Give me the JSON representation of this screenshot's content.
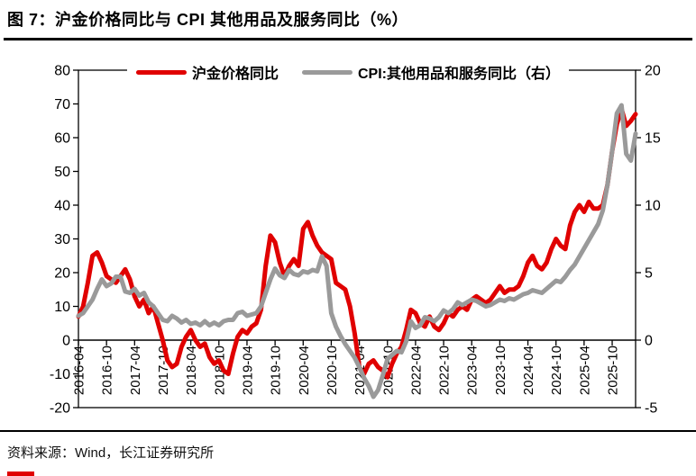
{
  "header": {
    "title": "图 7：沪金价格同比与 CPI 其他用品及服务同比（%）"
  },
  "footer": {
    "source": "资料来源：Wind，长江证券研究所"
  },
  "colors": {
    "gold_line": "#e00000",
    "cpi_line": "#9a9a9a",
    "axis": "#000000",
    "rule": "#000000"
  },
  "chart_data": {
    "type": "line",
    "title": "沪金价格同比与 CPI 其他用品及服务同比（%）",
    "x_start_month": "2016-04",
    "x_interval": "monthly",
    "x_tick_labels": [
      "2016-04",
      "2016-10",
      "2017-04",
      "2017-10",
      "2018-04",
      "2018-10",
      "2019-04",
      "2019-10",
      "2020-04",
      "2020-10",
      "2021-04",
      "2021-10",
      "2022-04",
      "2022-10",
      "2023-04",
      "2023-10",
      "2024-04",
      "2024-10",
      "2025-04",
      "2025-10"
    ],
    "left_axis": {
      "min": -20,
      "max": 80,
      "ticks": [
        80,
        70,
        60,
        50,
        40,
        30,
        20,
        10,
        0,
        -10,
        -20
      ]
    },
    "right_axis": {
      "min": -5,
      "max": 20,
      "ticks": [
        20,
        15,
        10,
        5,
        0,
        -5
      ]
    },
    "grid": false,
    "legend_position": "top",
    "series": [
      {
        "name": "沪金价格同比",
        "axis": "left",
        "color": "#e00000",
        "values": [
          7,
          10,
          17,
          25,
          26,
          23,
          19,
          18,
          17,
          19,
          21,
          18,
          13,
          10,
          12,
          8,
          10,
          5,
          0,
          -6,
          -8,
          -7,
          -2,
          1,
          3,
          0,
          -2,
          -1,
          -5,
          -7,
          -6,
          -9,
          -10,
          -4,
          1,
          3,
          2,
          4,
          5,
          9,
          22,
          31,
          29,
          23,
          19,
          22,
          24,
          22,
          33,
          35,
          31,
          28,
          26,
          25,
          24,
          17,
          16,
          15,
          10,
          2,
          -8,
          -10,
          -7,
          -6,
          -8,
          -9,
          -11,
          -7,
          -4,
          -2,
          3,
          9,
          8,
          5,
          4,
          7,
          4,
          3,
          5,
          8,
          7,
          9,
          10,
          9,
          12,
          13,
          12,
          11,
          12,
          14,
          16,
          14,
          15,
          15,
          16,
          19,
          23,
          25,
          22,
          21,
          23,
          27,
          30,
          28,
          27,
          34,
          38,
          40,
          38,
          41,
          39,
          39,
          40,
          46,
          56,
          64,
          68.5,
          63.5,
          65,
          67
        ]
      },
      {
        "name": "CPI:其他用品和服务同比（右）",
        "axis": "right",
        "color": "#9a9a9a",
        "values": [
          1.8,
          2.0,
          2.5,
          3.0,
          3.8,
          4.5,
          4.0,
          4.2,
          4.7,
          4.7,
          3.6,
          3.5,
          3.8,
          3.3,
          3.5,
          2.8,
          2.5,
          2.0,
          1.5,
          1.4,
          1.8,
          1.6,
          1.3,
          1.5,
          1.2,
          1.3,
          1.1,
          1.4,
          1.1,
          1.3,
          1.1,
          1.4,
          1.5,
          1.5,
          2.0,
          2.1,
          1.8,
          1.9,
          2.0,
          2.5,
          3.5,
          4.5,
          5.3,
          4.8,
          4.6,
          5.2,
          4.9,
          4.8,
          5.1,
          5.0,
          5.2,
          5.1,
          6.2,
          5.5,
          2.0,
          1.0,
          0.3,
          -0.3,
          -0.8,
          -1.3,
          -2.0,
          -2.8,
          -3.4,
          -4.2,
          -3.7,
          -2.6,
          -1.4,
          -1.1,
          -0.8,
          -0.9,
          -0.1,
          1.4,
          0.9,
          1.1,
          1.7,
          1.6,
          1.4,
          1.7,
          2.2,
          2.0,
          2.3,
          2.8,
          2.6,
          2.8,
          3.0,
          2.9,
          2.7,
          2.5,
          2.6,
          2.8,
          3.0,
          2.9,
          3.1,
          3.0,
          3.2,
          3.4,
          3.5,
          3.7,
          3.6,
          3.5,
          3.8,
          4.1,
          4.4,
          4.3,
          4.7,
          5.2,
          5.6,
          6.2,
          6.8,
          7.4,
          8.0,
          8.6,
          9.6,
          11.5,
          14.0,
          16.8,
          17.4,
          13.8,
          13.3,
          15.3
        ]
      }
    ]
  }
}
